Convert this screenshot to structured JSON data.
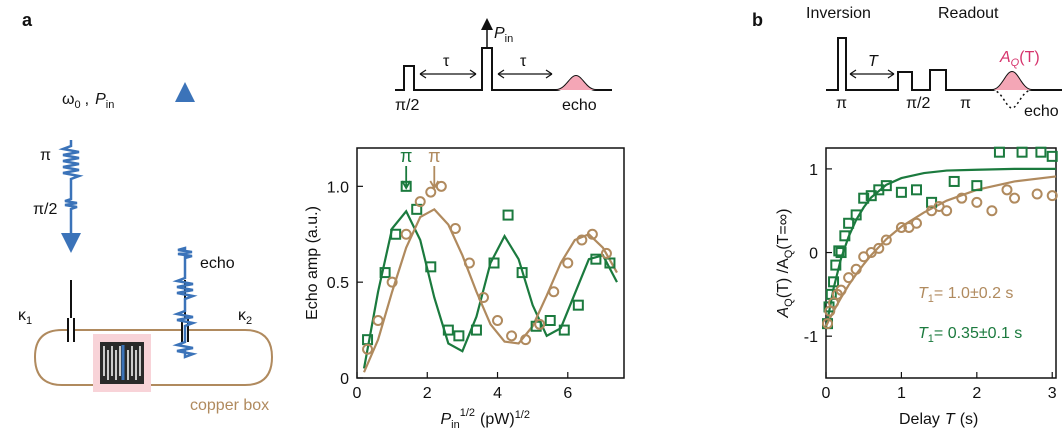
{
  "panels": {
    "a": "a",
    "b": "b"
  },
  "schematic": {
    "drive": "ω",
    "drive_sub": "0",
    "comma": ",",
    "power": "P",
    "power_sub": "in",
    "pi": "π",
    "pi_half": "π/2",
    "echo": "echo",
    "kappa1": "κ",
    "kappa1_sub": "1",
    "kappa2": "κ",
    "kappa2_sub": "2",
    "box": "copper box"
  },
  "sequence_a": {
    "power": "P",
    "power_sub": "in",
    "tau1": "τ",
    "tau2": "τ",
    "pi_half": "π/2",
    "echo": "echo"
  },
  "sequence_b": {
    "inversion": "Inversion",
    "readout": "Readout",
    "delay": "T",
    "pi1": "π",
    "pi_half": "π/2",
    "pi2": "π",
    "echo": "echo",
    "signal": "A",
    "signal_sub": "Q",
    "signal_arg": "(T)"
  },
  "chart_data": [
    {
      "type": "scatter",
      "ylabel": "Echo amp (a.u.)",
      "xlabel": {
        "symbol": "P",
        "sub": "in",
        "sup": "1/2",
        "unit": "(pW)",
        "unit_sup": "1/2"
      },
      "xlim": [
        0,
        7.6
      ],
      "ylim": [
        0,
        1.2
      ],
      "xticks": [
        0,
        2,
        4,
        6
      ],
      "yticks": [
        0,
        0.5,
        {
          "value": 1,
          "label": "1.0"
        }
      ],
      "annotations": [
        {
          "text": "π",
          "x": 1.4,
          "color": "#1b7a3e"
        },
        {
          "text": "π",
          "x": 2.2,
          "color": "#b08a5e"
        }
      ],
      "series": [
        {
          "color": "#1b7a3e",
          "style": "line",
          "x": [
            0.2,
            0.6,
            1.0,
            1.4,
            1.8,
            2.2,
            2.6,
            3.0,
            3.4,
            3.8,
            4.2,
            4.6,
            5.0,
            5.4,
            5.8,
            6.2,
            6.6,
            7.0,
            7.4
          ],
          "values": [
            0.05,
            0.45,
            0.78,
            0.87,
            0.72,
            0.42,
            0.18,
            0.14,
            0.32,
            0.6,
            0.74,
            0.62,
            0.38,
            0.22,
            0.26,
            0.44,
            0.62,
            0.64,
            0.5
          ]
        },
        {
          "color": "#b08a5e",
          "style": "line",
          "x": [
            0.2,
            0.6,
            1.0,
            1.4,
            1.8,
            2.2,
            2.6,
            3.0,
            3.4,
            3.8,
            4.2,
            4.6,
            5.0,
            5.4,
            5.8,
            6.2,
            6.6,
            7.0,
            7.4
          ],
          "values": [
            0.03,
            0.2,
            0.45,
            0.68,
            0.84,
            0.88,
            0.8,
            0.64,
            0.45,
            0.28,
            0.19,
            0.18,
            0.27,
            0.43,
            0.6,
            0.72,
            0.75,
            0.68,
            0.55
          ]
        },
        {
          "color": "#1b7a3e",
          "marker": "square",
          "x": [
            0.3,
            0.8,
            1.1,
            1.4,
            1.7,
            2.1,
            2.6,
            2.9,
            3.4,
            3.9,
            4.3,
            4.7,
            5.1,
            5.5,
            5.9,
            6.3,
            6.8,
            7.2
          ],
          "values": [
            0.2,
            0.55,
            0.75,
            1.0,
            0.88,
            0.58,
            0.25,
            0.22,
            0.25,
            0.6,
            0.85,
            0.55,
            0.27,
            0.3,
            0.25,
            0.38,
            0.62,
            0.6
          ]
        },
        {
          "color": "#b08a5e",
          "marker": "circle",
          "x": [
            0.3,
            0.6,
            1.0,
            1.4,
            1.8,
            2.1,
            2.4,
            2.8,
            3.2,
            3.6,
            4.0,
            4.4,
            4.8,
            5.2,
            5.6,
            6.0,
            6.4,
            6.7,
            7.1
          ],
          "values": [
            0.15,
            0.3,
            0.5,
            0.75,
            0.92,
            0.97,
            1.0,
            0.78,
            0.6,
            0.42,
            0.3,
            0.22,
            0.2,
            0.28,
            0.45,
            0.6,
            0.72,
            0.75,
            0.65
          ]
        }
      ]
    },
    {
      "type": "scatter",
      "ylabel": {
        "a1": "A",
        "s1": "Q",
        "m": "(T) /A",
        "s2": "Q",
        "e": "(T=∞)"
      },
      "xlabel": {
        "pre": "Delay",
        "symbol": "T",
        "unit": "(s)"
      },
      "xlim": [
        0,
        3.05
      ],
      "ylim": [
        -1.5,
        1.25
      ],
      "xticks": [
        0,
        1,
        2,
        3
      ],
      "yticks": [
        -1,
        0,
        1
      ],
      "annotations": [
        {
          "symbol": "T",
          "sub": "1",
          "text": "= 1.0±0.2 s",
          "color": "#b08a5e"
        },
        {
          "symbol": "T",
          "sub": "1",
          "text": "= 0.35±0.1 s",
          "color": "#1b7a3e"
        }
      ],
      "series": [
        {
          "color": "#1b7a3e",
          "style": "line",
          "x": [
            0,
            0.1,
            0.2,
            0.3,
            0.4,
            0.5,
            0.6,
            0.8,
            1.0,
            1.3,
            1.6,
            2.0,
            2.5,
            3.05
          ],
          "values": [
            -0.9,
            -0.43,
            -0.07,
            0.19,
            0.39,
            0.54,
            0.66,
            0.81,
            0.89,
            0.95,
            0.98,
            0.99,
            1.0,
            1.0
          ]
        },
        {
          "color": "#b08a5e",
          "style": "line",
          "x": [
            0,
            0.1,
            0.2,
            0.3,
            0.4,
            0.5,
            0.6,
            0.8,
            1.0,
            1.3,
            1.6,
            2.0,
            2.5,
            3.05
          ],
          "values": [
            -0.88,
            -0.7,
            -0.54,
            -0.39,
            -0.26,
            -0.14,
            -0.03,
            0.16,
            0.31,
            0.48,
            0.62,
            0.75,
            0.85,
            0.91
          ]
        },
        {
          "color": "#1b7a3e",
          "marker": "square",
          "x": [
            0.02,
            0.04,
            0.07,
            0.1,
            0.13,
            0.17,
            0.2,
            0.25,
            0.3,
            0.4,
            0.5,
            0.6,
            0.7,
            0.8,
            1.0,
            1.2,
            1.4,
            1.7,
            2.0,
            2.3,
            2.6,
            2.85,
            3.0
          ],
          "values": [
            -0.85,
            -0.65,
            -0.5,
            -0.35,
            -0.15,
            0.02,
            0.0,
            0.2,
            0.35,
            0.45,
            0.65,
            0.68,
            0.75,
            0.8,
            0.72,
            0.75,
            0.6,
            0.85,
            0.8,
            1.2,
            1.2,
            1.2,
            1.15
          ]
        },
        {
          "color": "#b08a5e",
          "marker": "circle",
          "x": [
            0.02,
            0.05,
            0.1,
            0.15,
            0.2,
            0.3,
            0.4,
            0.5,
            0.6,
            0.7,
            0.8,
            1.0,
            1.1,
            1.2,
            1.4,
            1.5,
            1.6,
            1.8,
            2.0,
            2.2,
            2.4,
            2.5,
            2.8,
            3.0
          ],
          "values": [
            -0.85,
            -0.7,
            -0.6,
            -0.5,
            -0.45,
            -0.3,
            -0.2,
            -0.05,
            0.0,
            0.05,
            0.15,
            0.3,
            0.3,
            0.35,
            0.5,
            0.55,
            0.5,
            0.65,
            0.6,
            0.5,
            0.75,
            0.65,
            0.7,
            0.68
          ]
        }
      ]
    }
  ]
}
